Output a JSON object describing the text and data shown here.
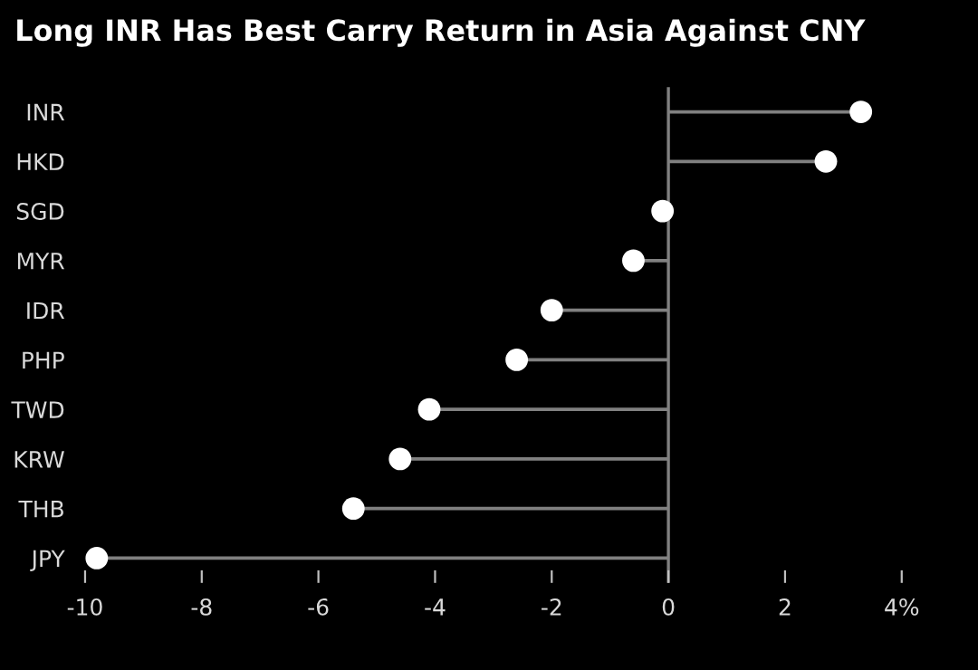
{
  "chart_data": {
    "type": "lollipop",
    "orientation": "horizontal",
    "title": "Long INR Has Best Carry Return in Asia Against CNY",
    "categories": [
      "INR",
      "HKD",
      "SGD",
      "MYR",
      "IDR",
      "PHP",
      "TWD",
      "KRW",
      "THB",
      "JPY"
    ],
    "values": [
      3.3,
      2.7,
      -0.1,
      -0.6,
      -2.0,
      -2.6,
      -4.1,
      -4.6,
      -5.4,
      -9.8
    ],
    "color": "#ffffff",
    "xlim": [
      -10,
      4
    ],
    "xticks": [
      -10,
      -8,
      -6,
      -4,
      -2,
      0,
      2,
      {
        "value": 4,
        "label": "4%"
      }
    ],
    "ref_lines": [
      {
        "axis": "x",
        "value": 0,
        "color": "#808080"
      }
    ],
    "grid": false,
    "marker": "circle"
  }
}
